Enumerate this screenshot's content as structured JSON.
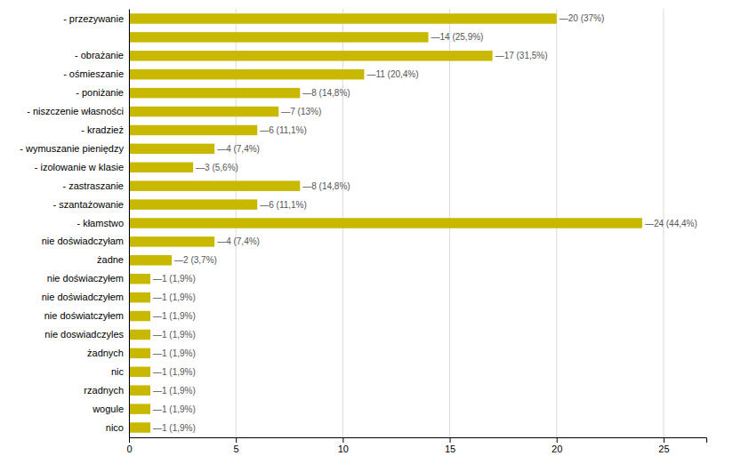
{
  "chart_data": {
    "type": "bar",
    "orientation": "horizontal",
    "categories": [
      "- przezywanie",
      null,
      "- obrażanie",
      "- ośmieszanie",
      "- poniżanie",
      "- niszczenie własności",
      "- kradzież",
      "- wymuszanie pieniędzy",
      "- izolowanie w klasie",
      "- zastraszanie",
      "- szantażowanie",
      "- kłamstwo",
      "nie doświadczyłam",
      "żadne",
      "nie doświaczyłem",
      "nie doświadczyłem",
      "nie doświatczyłem",
      "nie doswiadczyles",
      "żadnych",
      "nic",
      "rzadnych",
      "wogule",
      "nico"
    ],
    "values": [
      20,
      14,
      17,
      11,
      8,
      7,
      6,
      4,
      3,
      8,
      6,
      24,
      4,
      2,
      1,
      1,
      1,
      1,
      1,
      1,
      1,
      1,
      1
    ],
    "data_labels": true,
    "value_labels": [
      "—20 (37%)",
      "—14 (25,9%)",
      "—17 (31,5%)",
      "—11 (20,4%)",
      "—8 (14,8%)",
      "—7 (13%)",
      "—6 (11,1%)",
      "—4 (7,4%)",
      "—3 (5,6%)",
      "—8 (14,8%)",
      "—6 (11,1%)",
      "—24 (44,4%)",
      "—4 (7,4%)",
      "—2 (3,7%)",
      "—1 (1,9%)",
      "—1 (1,9%)",
      "—1 (1,9%)",
      "—1 (1,9%)",
      "—1 (1,9%)",
      "—1 (1,9%)",
      "—1 (1,9%)",
      "—1 (1,9%)",
      "—1 (1,9%)"
    ],
    "color": "#c8b800",
    "xlim": [
      0,
      27
    ],
    "xticks": [
      0,
      5,
      10,
      15,
      20,
      25
    ],
    "grid": true
  }
}
